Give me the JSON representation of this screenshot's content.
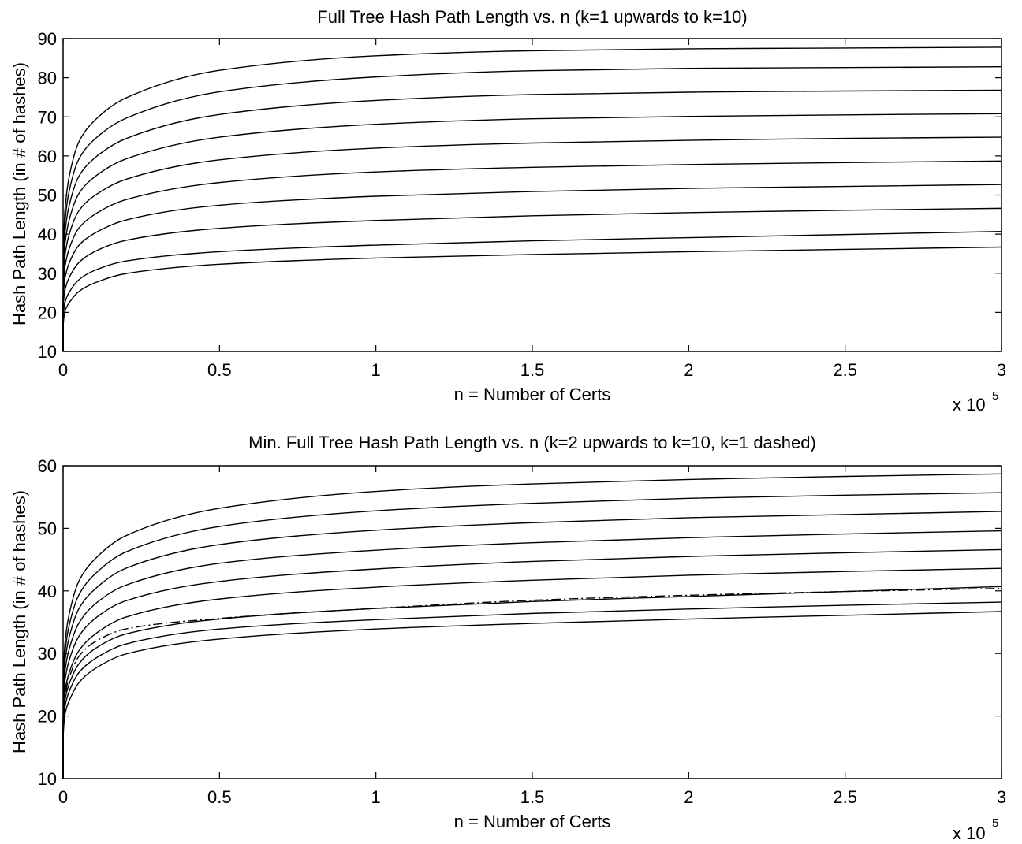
{
  "chart_data": [
    {
      "type": "line",
      "title": "Full Tree Hash Path Length vs. n (k=1 upwards to k=10)",
      "xlabel": "n = Number of Certs",
      "ylabel": "Hash Path Length (in # of hashes)",
      "x_multiplier_label": "x 10",
      "x_multiplier_exp": "5",
      "xlim": [
        0,
        300000
      ],
      "ylim": [
        10,
        90
      ],
      "xticks": [
        0,
        50000,
        100000,
        150000,
        200000,
        250000,
        300000
      ],
      "xtick_labels": [
        "0",
        "0.5",
        "1",
        "1.5",
        "2",
        "2.5",
        "3"
      ],
      "yticks": [
        10,
        20,
        30,
        40,
        50,
        60,
        70,
        80,
        90
      ],
      "ytick_labels": [
        "10",
        "20",
        "30",
        "40",
        "50",
        "60",
        "70",
        "80",
        "90"
      ],
      "grid": false,
      "x": [
        1,
        10,
        100,
        1000,
        2000,
        5000,
        10000,
        20000,
        50000,
        100000,
        150000,
        200000,
        250000,
        300000
      ],
      "series": [
        {
          "style": "solid",
          "values": [
            10,
            13.7,
            17.4,
            21.1,
            22.5,
            25.3,
            27.5,
            29.9,
            32.3,
            33.9,
            34.8,
            35.5,
            36.1,
            36.7
          ]
        },
        {
          "style": "solid",
          "values": [
            10,
            15.1,
            19.5,
            23.5,
            25.2,
            28.3,
            30.7,
            33.1,
            35.5,
            37.2,
            38.3,
            39.1,
            39.9,
            40.7
          ]
        },
        {
          "style": "solid",
          "values": [
            10,
            16.2,
            21.9,
            26.9,
            29.0,
            32.7,
            35.5,
            38.4,
            41.5,
            43.5,
            44.7,
            45.5,
            46.1,
            46.6
          ]
        },
        {
          "style": "solid",
          "values": [
            10,
            17.0,
            24.0,
            30.2,
            32.7,
            37.1,
            40.2,
            43.6,
            47.4,
            49.7,
            50.9,
            51.7,
            52.2,
            52.7
          ]
        },
        {
          "style": "solid",
          "values": [
            10,
            17.9,
            26.0,
            33.4,
            36.4,
            41.5,
            45.0,
            48.8,
            53.2,
            55.9,
            57.1,
            57.8,
            58.3,
            58.7
          ]
        },
        {
          "style": "solid",
          "values": [
            10,
            18.7,
            28.0,
            36.6,
            40.1,
            45.9,
            49.8,
            54.0,
            59.0,
            62.0,
            63.3,
            64.0,
            64.5,
            64.8
          ]
        },
        {
          "style": "solid",
          "values": [
            10,
            19.5,
            30.0,
            39.8,
            43.8,
            50.3,
            54.6,
            59.2,
            64.8,
            68.1,
            69.5,
            70.1,
            70.5,
            70.8
          ]
        },
        {
          "style": "solid",
          "values": [
            10,
            20.3,
            32.0,
            43.0,
            47.5,
            54.7,
            59.4,
            64.4,
            70.6,
            74.2,
            75.7,
            76.3,
            76.6,
            76.8
          ]
        },
        {
          "style": "solid",
          "values": [
            10,
            21.1,
            34.0,
            46.2,
            51.2,
            59.1,
            64.2,
            69.6,
            76.4,
            80.2,
            81.8,
            82.4,
            82.6,
            82.8
          ]
        },
        {
          "style": "solid",
          "values": [
            10,
            21.9,
            36.0,
            49.4,
            54.9,
            63.5,
            69.0,
            74.8,
            81.9,
            85.6,
            86.9,
            87.4,
            87.6,
            87.8
          ]
        }
      ]
    },
    {
      "type": "line",
      "title": "Min. Full Tree Hash Path Length vs. n (k=2 upwards to k=10, k=1 dashed)",
      "xlabel": "n = Number of Certs",
      "ylabel": "Hash Path Length (in # of hashes)",
      "x_multiplier_label": "x 10",
      "x_multiplier_exp": "5",
      "xlim": [
        0,
        300000
      ],
      "ylim": [
        10,
        60
      ],
      "xticks": [
        0,
        50000,
        100000,
        150000,
        200000,
        250000,
        300000
      ],
      "xtick_labels": [
        "0",
        "0.5",
        "1",
        "1.5",
        "2",
        "2.5",
        "3"
      ],
      "yticks": [
        10,
        20,
        30,
        40,
        50,
        60
      ],
      "ytick_labels": [
        "10",
        "20",
        "30",
        "40",
        "50",
        "60"
      ],
      "grid": false,
      "x": [
        1,
        10,
        100,
        1000,
        2000,
        5000,
        10000,
        20000,
        50000,
        100000,
        150000,
        200000,
        250000,
        300000
      ],
      "series": [
        {
          "style": "dashed",
          "values": [
            10,
            14.5,
            19.5,
            24.2,
            26.2,
            29.5,
            31.8,
            33.9,
            35.6,
            37.2,
            38.5,
            39.3,
            39.9,
            40.4
          ]
        },
        {
          "style": "solid",
          "values": [
            10,
            13.7,
            17.4,
            21.1,
            22.5,
            25.3,
            27.5,
            29.9,
            32.3,
            33.9,
            34.8,
            35.5,
            36.1,
            36.7
          ]
        },
        {
          "style": "solid",
          "values": [
            10,
            14.2,
            18.4,
            22.4,
            24.0,
            26.9,
            29.1,
            31.5,
            33.9,
            35.4,
            36.4,
            37.1,
            37.7,
            38.2
          ]
        },
        {
          "style": "solid",
          "values": [
            10,
            15.1,
            19.5,
            23.5,
            25.2,
            28.3,
            30.7,
            33.1,
            35.5,
            37.2,
            38.3,
            39.1,
            39.9,
            40.7
          ]
        },
        {
          "style": "solid",
          "values": [
            10,
            15.5,
            20.5,
            25.1,
            27.0,
            30.4,
            33.0,
            35.8,
            38.7,
            40.6,
            41.7,
            42.5,
            43.1,
            43.6
          ]
        },
        {
          "style": "solid",
          "values": [
            10,
            16.2,
            21.9,
            26.9,
            29.0,
            32.7,
            35.5,
            38.4,
            41.5,
            43.5,
            44.7,
            45.5,
            46.1,
            46.6
          ]
        },
        {
          "style": "solid",
          "values": [
            10,
            16.6,
            22.9,
            28.5,
            30.8,
            34.8,
            37.8,
            40.9,
            44.4,
            46.5,
            47.7,
            48.5,
            49.1,
            49.6
          ]
        },
        {
          "style": "solid",
          "values": [
            10,
            17.0,
            24.0,
            30.2,
            32.7,
            37.1,
            40.2,
            43.6,
            47.4,
            49.7,
            50.9,
            51.7,
            52.2,
            52.7
          ]
        },
        {
          "style": "solid",
          "values": [
            10,
            17.4,
            25.0,
            31.8,
            34.6,
            39.3,
            42.6,
            46.2,
            50.3,
            52.8,
            54.0,
            54.8,
            55.3,
            55.7
          ]
        },
        {
          "style": "solid",
          "values": [
            10,
            17.9,
            26.0,
            33.4,
            36.4,
            41.5,
            45.0,
            48.8,
            53.2,
            55.9,
            57.1,
            57.8,
            58.3,
            58.7
          ]
        }
      ]
    }
  ]
}
